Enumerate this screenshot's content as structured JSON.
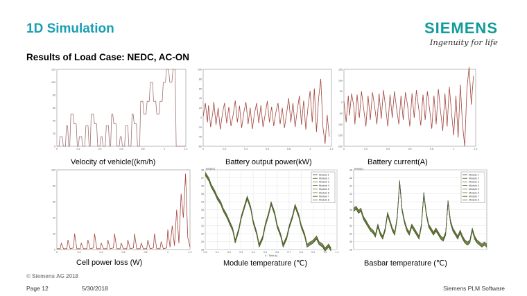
{
  "header": {
    "title": "1D Simulation",
    "subtitle": "Results of Load Case: NEDC, AC-ON",
    "brand": "SIEMENS",
    "tagline": "Ingenuity for life"
  },
  "captions": {
    "velocity": "Velocity of vehicle((km/h)",
    "power": "Battery output power(kW)",
    "current": "Battery current(A)",
    "loss": "Cell power loss (W)",
    "module_temp": "Module temperature (℃)",
    "busbar_temp": "Basbar temperature (℃)"
  },
  "footer": {
    "copyright": "© Siemens AG 2018",
    "page": "Page 12",
    "date": "5/30/2018",
    "right": "Siemens PLM Software"
  },
  "colors": {
    "accent": "#1a9fb0",
    "brand": "#119b9b",
    "red_trace": "#c0392b",
    "temp_trace": "#55701e"
  },
  "chart_data": [
    {
      "id": "velocity",
      "type": "line",
      "x": [
        0,
        0.02,
        0.03,
        0.05,
        0.06,
        0.08,
        0.09,
        0.1,
        0.11,
        0.12,
        0.13,
        0.15,
        0.16,
        0.18,
        0.19,
        0.2,
        0.21,
        0.23,
        0.24,
        0.26,
        0.27,
        0.29,
        0.3,
        0.31,
        0.32,
        0.34,
        0.35,
        0.37,
        0.38,
        0.4,
        0.41,
        0.42,
        0.43,
        0.45,
        0.46,
        0.48,
        0.49,
        0.5,
        0.51,
        0.52,
        0.53,
        0.55,
        0.56,
        0.58,
        0.59,
        0.6,
        0.61,
        0.63,
        0.64,
        0.66,
        0.67,
        0.69,
        0.7,
        0.71,
        0.72,
        0.74,
        0.75,
        0.77,
        0.78,
        0.8,
        0.81,
        0.83,
        0.84,
        0.86,
        0.87,
        0.89,
        0.9,
        0.92,
        0.93,
        0.95,
        0.96,
        0.98,
        0.99,
        1.01,
        1.02,
        1.04,
        1.05,
        1.07,
        1.08,
        1.1,
        1.11,
        1.13,
        1.14,
        1.16,
        1.18,
        1.2
      ],
      "y": [
        0,
        0,
        15,
        15,
        0,
        0,
        32,
        32,
        0,
        0,
        50,
        50,
        35,
        35,
        0,
        0,
        15,
        15,
        0,
        0,
        32,
        32,
        0,
        0,
        50,
        50,
        35,
        35,
        0,
        0,
        15,
        15,
        0,
        0,
        32,
        32,
        0,
        0,
        50,
        50,
        35,
        35,
        0,
        0,
        15,
        15,
        0,
        0,
        32,
        32,
        0,
        0,
        50,
        50,
        35,
        35,
        0,
        0,
        70,
        70,
        50,
        50,
        70,
        70,
        100,
        100,
        70,
        70,
        50,
        50,
        70,
        70,
        100,
        100,
        120,
        120,
        100,
        100,
        120,
        120,
        0,
        0,
        0,
        0,
        0,
        0
      ],
      "xlim": [
        0,
        1.2
      ],
      "ylim": [
        0,
        120
      ],
      "xticks": [
        "0",
        "0.2",
        "0.4",
        "0.6",
        "0.8",
        "1",
        "1.2"
      ],
      "yticks": [
        "0",
        "20",
        "40",
        "60",
        "80",
        "100",
        "120"
      ]
    },
    {
      "id": "power",
      "type": "line",
      "x": [
        0,
        0.02,
        0.04,
        0.05,
        0.07,
        0.09,
        0.1,
        0.12,
        0.14,
        0.16,
        0.18,
        0.2,
        0.22,
        0.24,
        0.26,
        0.28,
        0.3,
        0.32,
        0.34,
        0.36,
        0.38,
        0.4,
        0.42,
        0.44,
        0.46,
        0.48,
        0.5,
        0.52,
        0.54,
        0.56,
        0.58,
        0.6,
        0.62,
        0.64,
        0.66,
        0.68,
        0.7,
        0.72,
        0.74,
        0.76,
        0.78,
        0.8,
        0.82,
        0.84,
        0.86,
        0.88,
        0.9,
        0.92,
        0.94,
        0.96,
        0.98,
        1.0,
        1.02,
        1.04,
        1.06,
        1.08,
        1.1,
        1.12,
        1.14,
        1.16,
        1.18
      ],
      "y": [
        2,
        30,
        -10,
        25,
        -20,
        10,
        32,
        -15,
        20,
        -25,
        8,
        30,
        -12,
        22,
        -18,
        5,
        35,
        -10,
        24,
        -22,
        10,
        32,
        -14,
        20,
        -24,
        8,
        30,
        -12,
        25,
        -20,
        6,
        34,
        -10,
        22,
        -18,
        10,
        30,
        -14,
        20,
        -22,
        8,
        40,
        -10,
        30,
        -20,
        15,
        45,
        -15,
        35,
        -25,
        20,
        55,
        -10,
        60,
        -30,
        40,
        80,
        -20,
        -55,
        5,
        -40
      ],
      "xlim": [
        0,
        1.2
      ],
      "ylim": [
        -60,
        100
      ],
      "xticks": [
        "0",
        "0.2",
        "0.4",
        "0.6",
        "0.8",
        "1",
        "1.2"
      ],
      "yticks": [
        "-60",
        "-40",
        "-20",
        "0",
        "20",
        "40",
        "60",
        "80",
        "100"
      ]
    },
    {
      "id": "current",
      "type": "line",
      "x": [
        0,
        0.02,
        0.04,
        0.05,
        0.07,
        0.09,
        0.1,
        0.12,
        0.14,
        0.16,
        0.18,
        0.2,
        0.22,
        0.24,
        0.26,
        0.28,
        0.3,
        0.32,
        0.34,
        0.36,
        0.38,
        0.4,
        0.42,
        0.44,
        0.46,
        0.48,
        0.5,
        0.52,
        0.54,
        0.56,
        0.58,
        0.6,
        0.62,
        0.64,
        0.66,
        0.68,
        0.7,
        0.72,
        0.74,
        0.76,
        0.78,
        0.8,
        0.82,
        0.84,
        0.86,
        0.88,
        0.9,
        0.92,
        0.94,
        0.96,
        0.98,
        1.0,
        1.02,
        1.04,
        1.06,
        1.08,
        1.1,
        1.12,
        1.14,
        1.16,
        1.18
      ],
      "y": [
        5,
        -90,
        30,
        -60,
        40,
        -20,
        -100,
        35,
        -70,
        50,
        -30,
        -110,
        30,
        -80,
        45,
        -20,
        -100,
        40,
        -75,
        55,
        -25,
        -110,
        35,
        -70,
        50,
        -30,
        -100,
        30,
        -80,
        45,
        -15,
        -110,
        40,
        -70,
        55,
        -25,
        -105,
        35,
        -80,
        50,
        -30,
        -120,
        30,
        -100,
        60,
        -40,
        -130,
        40,
        -110,
        70,
        -50,
        -150,
        30,
        -160,
        80,
        -100,
        -200,
        60,
        160,
        -10,
        120
      ],
      "xlim": [
        0,
        1.2
      ],
      "ylim": [
        -200,
        150
      ],
      "xticks": [
        "0",
        "0.2",
        "0.4",
        "0.6",
        "0.8",
        "1",
        "1.2"
      ],
      "yticks": [
        "-200",
        "-150",
        "-100",
        "-50",
        "0",
        "50",
        "100",
        "150"
      ]
    },
    {
      "id": "loss",
      "type": "line",
      "x": [
        0,
        0.03,
        0.04,
        0.06,
        0.09,
        0.1,
        0.12,
        0.15,
        0.16,
        0.18,
        0.21,
        0.22,
        0.24,
        0.27,
        0.28,
        0.3,
        0.33,
        0.34,
        0.36,
        0.39,
        0.4,
        0.42,
        0.45,
        0.46,
        0.48,
        0.51,
        0.52,
        0.54,
        0.57,
        0.58,
        0.6,
        0.63,
        0.64,
        0.66,
        0.69,
        0.7,
        0.72,
        0.75,
        0.76,
        0.78,
        0.81,
        0.82,
        0.84,
        0.87,
        0.88,
        0.9,
        0.93,
        0.94,
        0.96,
        0.99,
        1.0,
        1.02,
        1.04,
        1.06,
        1.08,
        1.1,
        1.12,
        1.14,
        1.16,
        1.18,
        1.2
      ],
      "y": [
        1,
        1,
        8,
        1,
        1,
        12,
        1,
        2,
        20,
        1,
        1,
        8,
        1,
        1,
        12,
        1,
        2,
        20,
        1,
        1,
        8,
        1,
        1,
        12,
        1,
        2,
        20,
        1,
        1,
        8,
        1,
        1,
        12,
        1,
        2,
        20,
        1,
        1,
        8,
        1,
        1,
        12,
        1,
        2,
        20,
        1,
        1,
        10,
        1,
        2,
        25,
        3,
        30,
        5,
        50,
        8,
        70,
        40,
        95,
        15,
        3
      ],
      "xlim": [
        0,
        1.2
      ],
      "ylim": [
        0,
        100
      ],
      "xticks": [
        "0",
        "0.2",
        "0.4",
        "0.6",
        "0.8",
        "1",
        "1.2"
      ],
      "yticks": [
        "0",
        "20",
        "40",
        "60",
        "80",
        "100"
      ]
    },
    {
      "id": "module_temp",
      "type": "line",
      "ylabel": "temp(C)",
      "xlabel": "X : Time [s]",
      "series": [
        {
          "name": "Module 1"
        },
        {
          "name": "Module 2"
        },
        {
          "name": "Module 3"
        },
        {
          "name": "Module 4"
        },
        {
          "name": "Module 5"
        },
        {
          "name": "Module 6"
        },
        {
          "name": "Module 7"
        },
        {
          "name": "Module 8"
        }
      ],
      "x": [
        0,
        0.03,
        0.05,
        0.08,
        0.1,
        0.13,
        0.15,
        0.18,
        0.2,
        0.23,
        0.25,
        0.28,
        0.3,
        0.33,
        0.35,
        0.38,
        0.4,
        0.43,
        0.45,
        0.48,
        0.5,
        0.53,
        0.55,
        0.58,
        0.6,
        0.63,
        0.65,
        0.68,
        0.7,
        0.73,
        0.75,
        0.78,
        0.8,
        0.83,
        0.85,
        0.88,
        0.9,
        0.93,
        0.95,
        0.98,
        1.0,
        1.03,
        1.05
      ],
      "values": [
        37.5,
        36.8,
        36,
        35.2,
        34.5,
        33.8,
        33,
        32.2,
        31.5,
        30.5,
        29,
        30.5,
        32,
        33.5,
        34.5,
        33.2,
        31.5,
        30,
        28.5,
        29.5,
        31,
        32.5,
        33.8,
        32.5,
        31,
        29.8,
        28.5,
        29.5,
        30.8,
        32.2,
        33.5,
        32.3,
        31,
        29.8,
        28.5,
        28.8,
        29,
        29.5,
        28.8,
        28.5,
        28,
        28.5,
        28
      ],
      "xlim": [
        0,
        1.1
      ],
      "ylim": [
        28,
        38
      ],
      "xticks": [
        "0.0",
        "0.1",
        "0.2",
        "0.3",
        "0.4",
        "0.5",
        "0.6",
        "0.7",
        "0.8",
        "0.9",
        "1.0",
        "1.1"
      ],
      "yticks": [
        "28",
        "29",
        "30",
        "31",
        "32",
        "33",
        "34",
        "35",
        "36",
        "37",
        "38"
      ]
    },
    {
      "id": "busbar_temp",
      "type": "line",
      "ylabel": "temp(C)",
      "series": [
        {
          "name": "Module 1"
        },
        {
          "name": "Module 2"
        },
        {
          "name": "Module 3"
        },
        {
          "name": "Module 4"
        },
        {
          "name": "Module 5"
        },
        {
          "name": "Module 6"
        },
        {
          "name": "Module 7"
        },
        {
          "name": "Module 8"
        }
      ],
      "x": [
        0,
        0.02,
        0.04,
        0.06,
        0.08,
        0.1,
        0.12,
        0.14,
        0.16,
        0.18,
        0.2,
        0.22,
        0.24,
        0.26,
        0.28,
        0.3,
        0.32,
        0.34,
        0.36,
        0.38,
        0.4,
        0.42,
        0.44,
        0.46,
        0.48,
        0.5,
        0.52,
        0.54,
        0.56,
        0.58,
        0.6,
        0.62,
        0.64,
        0.66,
        0.68,
        0.7,
        0.72,
        0.74,
        0.76,
        0.78,
        0.8,
        0.82,
        0.84,
        0.86,
        0.88,
        0.9,
        0.92,
        0.94,
        0.96,
        0.98,
        1.0,
        1.02,
        1.04,
        1.06,
        1.08,
        1.1
      ],
      "values": [
        38,
        38.5,
        37.5,
        38,
        36,
        35,
        34,
        33,
        32.5,
        31.5,
        34,
        32,
        31,
        33,
        37,
        35,
        33,
        32,
        36,
        45,
        38,
        35,
        33,
        32,
        34,
        33,
        32,
        31,
        34,
        42,
        37,
        34,
        33,
        32,
        33,
        32,
        31,
        30.5,
        32,
        40,
        35,
        33,
        32,
        31,
        32.5,
        31,
        30,
        29.5,
        30,
        33,
        31,
        30,
        29.5,
        29,
        29.5,
        29
      ],
      "xlim": [
        0,
        1.1
      ],
      "ylim": [
        28,
        48
      ],
      "yticks": [
        "28",
        "30",
        "32",
        "34",
        "36",
        "38",
        "40",
        "42",
        "44",
        "46",
        "48"
      ]
    }
  ]
}
